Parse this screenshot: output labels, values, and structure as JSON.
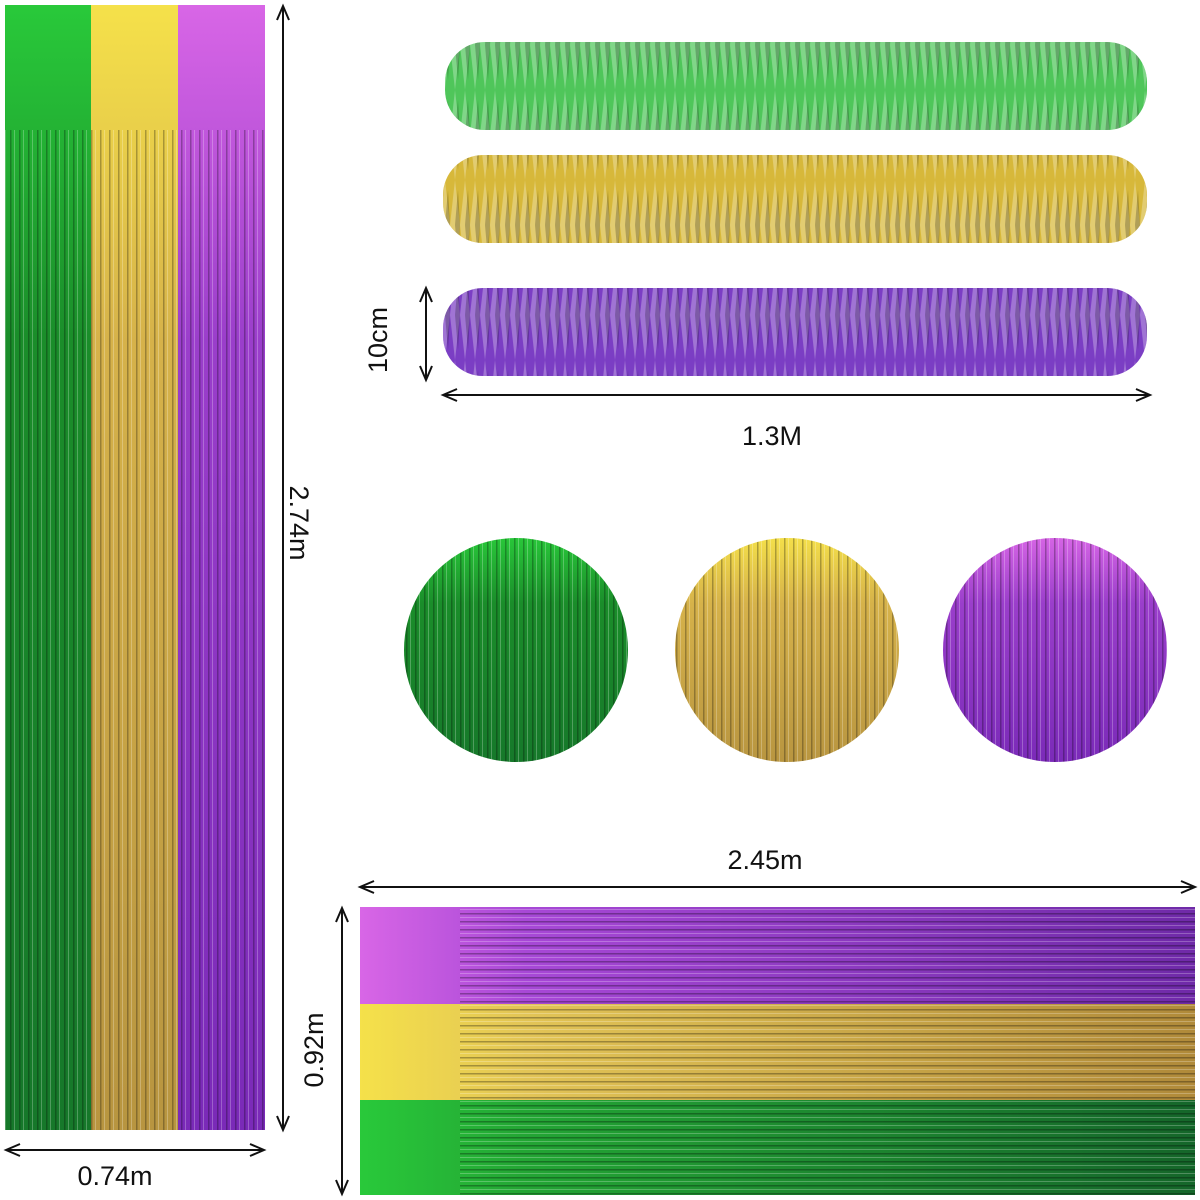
{
  "dimensions": {
    "curtain_height": "2.74m",
    "curtain_width": "0.74m",
    "garland_width": "10cm",
    "garland_length": "1.3M",
    "backdrop_length": "2.45m",
    "backdrop_height": "0.92m"
  }
}
